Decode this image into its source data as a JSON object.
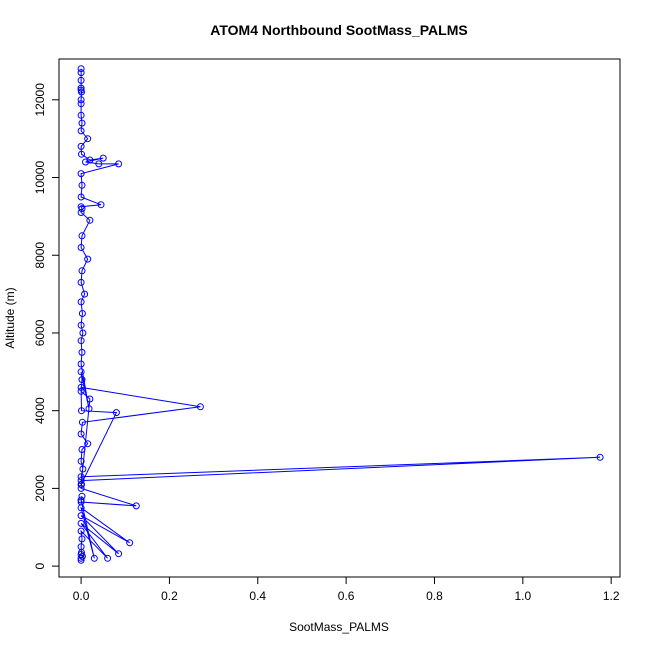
{
  "chart_data": {
    "type": "line",
    "title": "ATOM4 Northbound SootMass_PALMS",
    "xlabel": "SootMass_PALMS",
    "ylabel": "Altitude (m)",
    "xlim": [
      -0.05,
      1.22
    ],
    "ylim": [
      -280,
      13050
    ],
    "x_ticks": [
      0,
      0.2,
      0.4,
      0.6,
      0.8,
      1.0,
      1.2
    ],
    "x_tick_labels": [
      "0.0",
      "0.2",
      "0.4",
      "0.6",
      "0.8",
      "1.0",
      "1.2"
    ],
    "y_ticks": [
      0,
      2000,
      4000,
      6000,
      8000,
      10000,
      12000
    ],
    "y_tick_labels": [
      "0",
      "2000",
      "4000",
      "6000",
      "8000",
      "10000",
      "12000"
    ],
    "grid": false,
    "legend": "none",
    "markers": "open-circle",
    "color": "#0000ff",
    "series": [
      {
        "x": [
          0,
          0,
          0.003,
          0,
          0.001,
          0,
          0.002,
          0,
          0.06,
          0,
          0.085,
          0,
          0.11,
          0,
          0.03,
          0,
          0.002,
          0,
          0.125,
          0,
          0.001,
          0,
          1.175,
          0,
          0.004,
          0,
          0.002,
          0.015,
          0,
          0.003,
          0.27,
          0,
          0.001,
          0.08,
          0,
          0.02,
          0,
          0.002,
          0,
          0.018,
          0,
          0.002,
          0,
          0.004,
          0,
          0.003,
          0,
          0.008,
          0,
          0.002,
          0.015,
          0,
          0.002,
          0.02,
          0,
          0.002,
          0,
          0.045,
          0,
          0.002,
          0,
          0.085,
          0.04,
          0.01,
          0.05,
          0.02,
          0.001,
          0,
          0.015,
          0,
          0.002,
          0,
          0,
          0,
          0.001,
          0,
          0,
          0,
          0,
          0
        ],
        "y": [
          150,
          200,
          250,
          300,
          350,
          500,
          700,
          900,
          200,
          1100,
          320,
          1300,
          600,
          1500,
          200,
          1700,
          1800,
          1650,
          1550,
          2000,
          2100,
          2200,
          2800,
          2300,
          2500,
          2700,
          3000,
          3150,
          3400,
          3700,
          4100,
          4600,
          4000,
          3950,
          2100,
          4300,
          4500,
          4800,
          5000,
          4050,
          5200,
          5500,
          5800,
          6000,
          6200,
          6500,
          6800,
          7000,
          7300,
          7600,
          7900,
          8200,
          8500,
          8900,
          9100,
          9200,
          9250,
          9300,
          9500,
          9800,
          10100,
          10350,
          10350,
          10400,
          10500,
          10450,
          10600,
          10800,
          11000,
          11200,
          11400,
          11600,
          11900,
          12000,
          12200,
          12250,
          12300,
          12500,
          12700,
          12800
        ]
      }
    ]
  }
}
